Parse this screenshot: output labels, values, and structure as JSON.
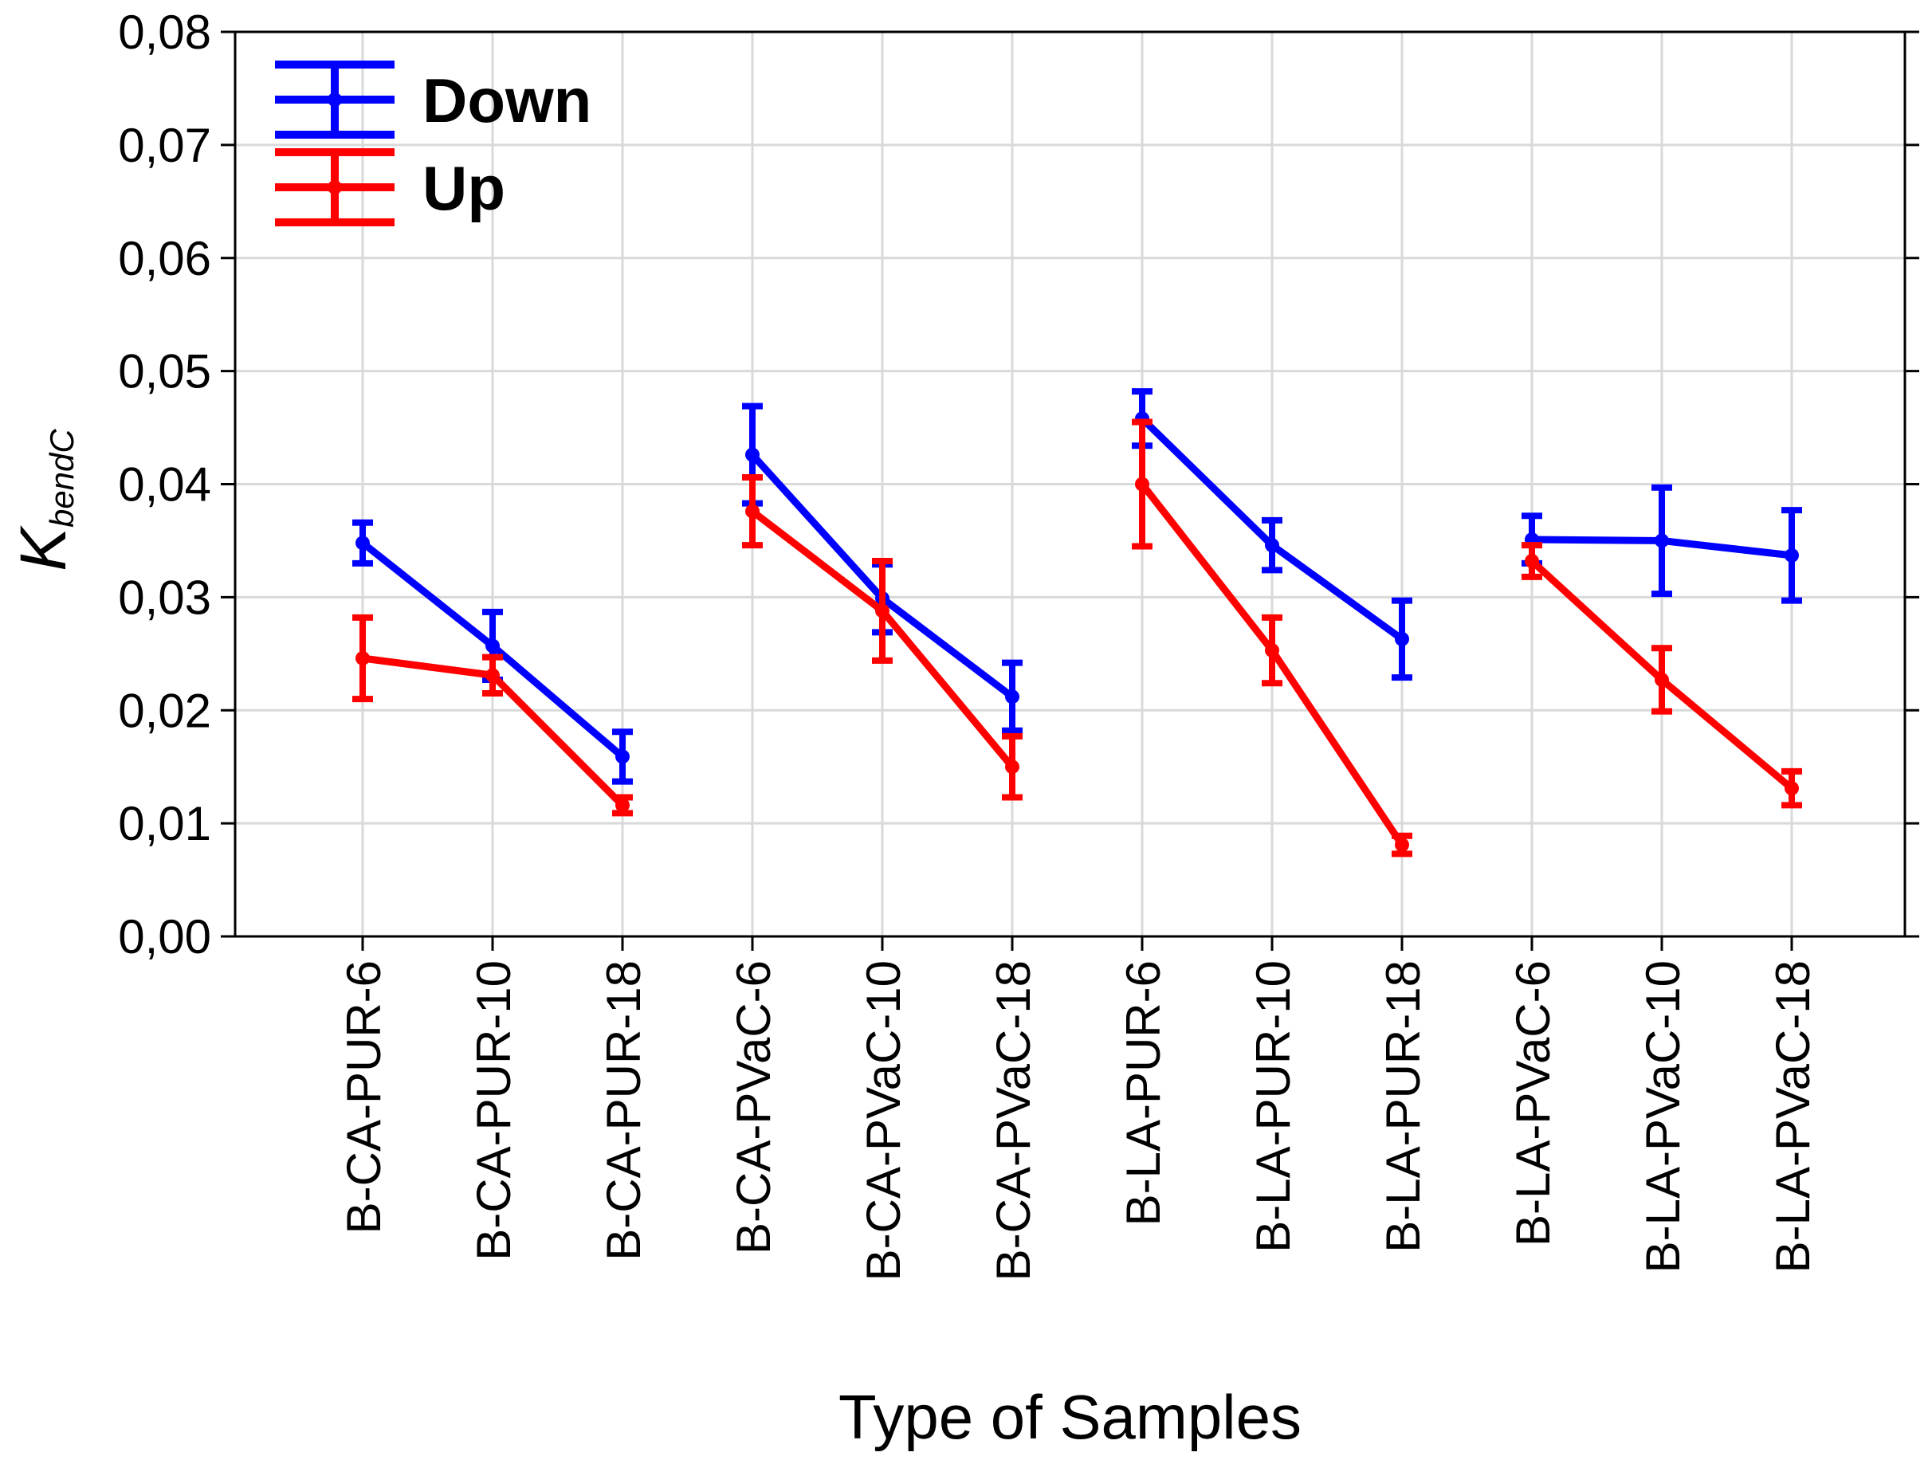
{
  "chart_data": {
    "type": "line",
    "title": "",
    "xlabel": "Type of Samples",
    "ylabel": {
      "main": "K",
      "sub": "bendC"
    },
    "ylim": [
      0,
      0.08
    ],
    "yticks": [
      "0,00",
      "0,01",
      "0,02",
      "0,03",
      "0,04",
      "0,05",
      "0,06",
      "0,07",
      "0,08"
    ],
    "grid": true,
    "legend_position": "top-left",
    "categories": [
      "B-CA-PUR-6",
      "B-CA-PUR-10",
      "B-CA-PUR-18",
      "B-CA-PVaC-6",
      "B-CA-PVaC-10",
      "B-CA-PVaC-18",
      "B-LA-PUR-6",
      "B-LA-PUR-10",
      "B-LA-PUR-18",
      "B-LA-PVaC-6",
      "B-LA-PVaC-10",
      "B-LA-PVaC-18"
    ],
    "series": [
      {
        "name": "Down",
        "color": "#0000ff",
        "groups": [
          [
            0,
            1,
            2
          ],
          [
            3,
            4,
            5
          ],
          [
            6,
            7,
            8
          ],
          [
            9,
            10,
            11
          ]
        ],
        "values": [
          0.0348,
          0.0257,
          0.0159,
          0.0426,
          0.0299,
          0.0212,
          0.0458,
          0.0346,
          0.0263,
          0.0351,
          0.035,
          0.0337
        ],
        "errors": [
          0.0018,
          0.003,
          0.0022,
          0.0043,
          0.003,
          0.003,
          0.0024,
          0.0022,
          0.0034,
          0.0021,
          0.0047,
          0.004
        ]
      },
      {
        "name": "Up",
        "color": "#ff0000",
        "groups": [
          [
            0,
            1,
            2
          ],
          [
            3,
            4,
            5
          ],
          [
            6,
            7,
            8
          ],
          [
            9,
            10,
            11
          ]
        ],
        "values": [
          0.0246,
          0.0231,
          0.0116,
          0.0376,
          0.0288,
          0.015,
          0.04,
          0.0253,
          0.0081,
          0.0332,
          0.0227,
          0.0131
        ],
        "errors": [
          0.0036,
          0.0016,
          0.0007,
          0.003,
          0.0044,
          0.0027,
          0.0055,
          0.0029,
          0.0008,
          0.0014,
          0.0028,
          0.0015
        ]
      }
    ]
  }
}
